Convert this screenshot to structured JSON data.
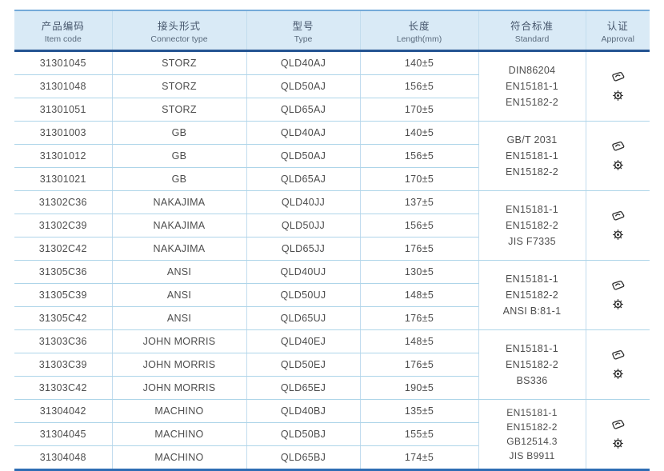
{
  "colors": {
    "header_bg": "#d9eaf6",
    "header_top_border": "#74aad9",
    "header_bottom_border": "#245492",
    "table_bottom_border": "#2e6db4",
    "row_separator": "#aed5e9",
    "column_separator": "#c2dcee",
    "body_text": "#4d4d4d",
    "header_text": "#44546a",
    "icon_color": "#2f2f2f"
  },
  "table": {
    "headers": [
      {
        "zh": "产品编码",
        "en": "Item code"
      },
      {
        "zh": "接头形式",
        "en": "Connector type"
      },
      {
        "zh": "型号",
        "en": "Type"
      },
      {
        "zh": "长度",
        "en": "Length(mm)"
      },
      {
        "zh": "符合标准",
        "en": "Standard"
      },
      {
        "zh": "认证",
        "en": "Approval"
      }
    ],
    "groups": [
      {
        "rows": [
          {
            "item_code": "31301045",
            "connector_type": "STORZ",
            "type": "QLD40AJ",
            "length": "140±5"
          },
          {
            "item_code": "31301048",
            "connector_type": "STORZ",
            "type": "QLD50AJ",
            "length": "156±5"
          },
          {
            "item_code": "31301051",
            "connector_type": "STORZ",
            "type": "QLD65AJ",
            "length": "170±5"
          }
        ],
        "standards": [
          "DIN86204",
          "EN15181-1",
          "EN15182-2"
        ]
      },
      {
        "rows": [
          {
            "item_code": "31301003",
            "connector_type": "GB",
            "type": "QLD40AJ",
            "length": "140±5"
          },
          {
            "item_code": "31301012",
            "connector_type": "GB",
            "type": "QLD50AJ",
            "length": "156±5"
          },
          {
            "item_code": "31301021",
            "connector_type": "GB",
            "type": "QLD65AJ",
            "length": "170±5"
          }
        ],
        "standards": [
          "GB/T 2031",
          "EN15181-1",
          "EN15182-2"
        ]
      },
      {
        "rows": [
          {
            "item_code": "31302C36",
            "connector_type": "NAKAJIMA",
            "type": "QLD40JJ",
            "length": "137±5"
          },
          {
            "item_code": "31302C39",
            "connector_type": "NAKAJIMA",
            "type": "QLD50JJ",
            "length": "156±5"
          },
          {
            "item_code": "31302C42",
            "connector_type": "NAKAJIMA",
            "type": "QLD65JJ",
            "length": "176±5"
          }
        ],
        "standards": [
          "EN15181-1",
          "EN15182-2",
          "JIS F7335"
        ]
      },
      {
        "rows": [
          {
            "item_code": "31305C36",
            "connector_type": "ANSI",
            "type": "QLD40UJ",
            "length": "130±5"
          },
          {
            "item_code": "31305C39",
            "connector_type": "ANSI",
            "type": "QLD50UJ",
            "length": "148±5"
          },
          {
            "item_code": "31305C42",
            "connector_type": "ANSI",
            "type": "QLD65UJ",
            "length": "176±5"
          }
        ],
        "standards": [
          "EN15181-1",
          "EN15182-2",
          "ANSI B:81-1"
        ]
      },
      {
        "rows": [
          {
            "item_code": "31303C36",
            "connector_type": "JOHN MORRIS",
            "type": "QLD40EJ",
            "length": "148±5"
          },
          {
            "item_code": "31303C39",
            "connector_type": "JOHN MORRIS",
            "type": "QLD50EJ",
            "length": "176±5"
          },
          {
            "item_code": "31303C42",
            "connector_type": "JOHN MORRIS",
            "type": "QLD65EJ",
            "length": "190±5"
          }
        ],
        "standards": [
          "EN15181-1",
          "EN15182-2",
          "BS336"
        ]
      },
      {
        "rows": [
          {
            "item_code": "31304042",
            "connector_type": "MACHINO",
            "type": "QLD40BJ",
            "length": "135±5"
          },
          {
            "item_code": "31304045",
            "connector_type": "MACHINO",
            "type": "QLD50BJ",
            "length": "155±5"
          },
          {
            "item_code": "31304048",
            "connector_type": "MACHINO",
            "type": "QLD65BJ",
            "length": "174±5"
          }
        ],
        "standards": [
          "EN15181-1",
          "EN15182-2",
          "GB12514.3",
          "JIS B9911"
        ]
      }
    ]
  },
  "icons": {
    "approval_1": "certification-logo-icon",
    "approval_2": "wheelmark-icon"
  }
}
